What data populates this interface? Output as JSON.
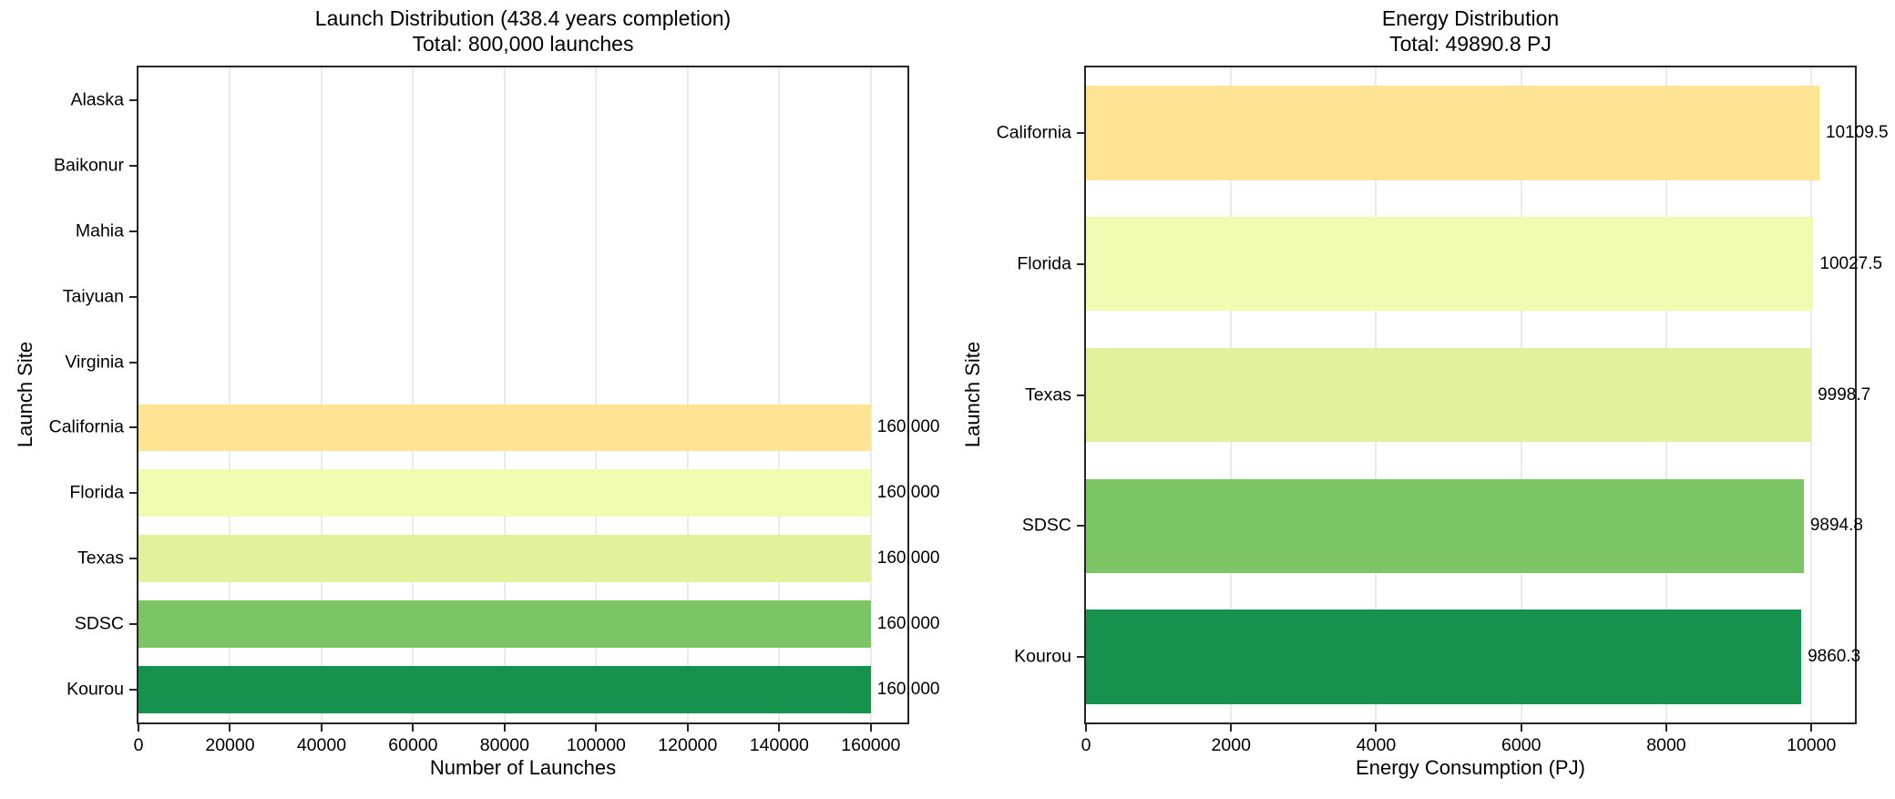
{
  "figure": {
    "background": "#ffffff",
    "spine_color": "#262626",
    "grid_color": "#eaeaea",
    "text_color": "#000000"
  },
  "chart_data": [
    {
      "type": "bar",
      "orientation": "horizontal",
      "title": "Launch Distribution (438.4 years completion)",
      "subtitle": "Total: 800,000 launches",
      "xlabel": "Number of Launches",
      "ylabel": "Launch Site",
      "categories": [
        "Alaska",
        "Baikonur",
        "Mahia",
        "Taiyuan",
        "Virginia",
        "California",
        "Florida",
        "Texas",
        "SDSC",
        "Kourou"
      ],
      "values": [
        0,
        0,
        0,
        0,
        0,
        160000,
        160000,
        160000,
        160000,
        160000
      ],
      "bar_labels": [
        "",
        "",
        "",
        "",
        "",
        "160,000",
        "160,000",
        "160,000",
        "160,000",
        "160,000"
      ],
      "colors": [
        "",
        "",
        "",
        "",
        "",
        "#fee493",
        "#f3fab1",
        "#e0f29b",
        "#7cc565",
        "#16914e"
      ],
      "xlim": [
        0,
        168000
      ],
      "xticks": [
        0,
        20000,
        40000,
        60000,
        80000,
        100000,
        120000,
        140000,
        160000
      ],
      "xtick_labels": [
        "0",
        "20000",
        "40000",
        "60000",
        "80000",
        "100000",
        "120000",
        "140000",
        "160000"
      ],
      "grid": true,
      "legend": null
    },
    {
      "type": "bar",
      "orientation": "horizontal",
      "title": "Energy Distribution",
      "subtitle": "Total: 49890.8 PJ",
      "xlabel": "Energy Consumption (PJ)",
      "ylabel": "Launch Site",
      "categories": [
        "California",
        "Florida",
        "Texas",
        "SDSC",
        "Kourou"
      ],
      "values": [
        10109.5,
        10027.5,
        9998.7,
        9894.8,
        9860.3
      ],
      "bar_labels": [
        "10109.5",
        "10027.5",
        "9998.7",
        "9894.8",
        "9860.3"
      ],
      "colors": [
        "#fee493",
        "#f3fab1",
        "#e0f29b",
        "#7cc565",
        "#16914e"
      ],
      "xlim": [
        0,
        10600
      ],
      "xticks": [
        0,
        2000,
        4000,
        6000,
        8000,
        10000
      ],
      "xtick_labels": [
        "0",
        "2000",
        "4000",
        "6000",
        "8000",
        "10000"
      ],
      "grid": true,
      "legend": null
    }
  ]
}
